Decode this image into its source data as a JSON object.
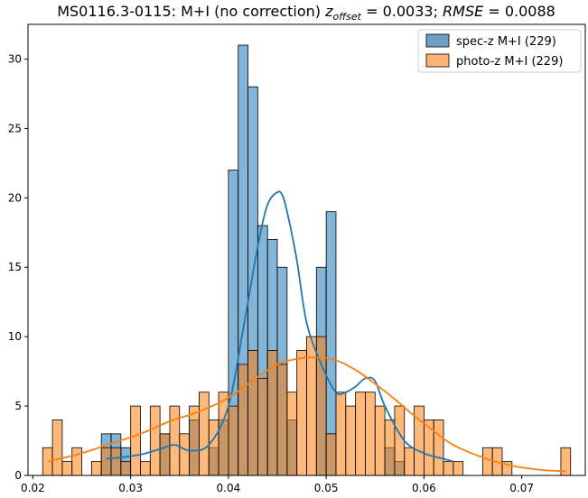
{
  "chart_data": {
    "type": "histogram",
    "title": {
      "prefix": "MS0116.3-0115: M+I (no correction) ",
      "z_symbol": "z",
      "z_subscript": "offset",
      "z_eq": " = 0.0033; ",
      "rmse_symbol": "RMSE",
      "rmse_eq": " = 0.0088"
    },
    "xlabel": "",
    "ylabel": "",
    "xlim": [
      0.0195,
      0.0765
    ],
    "ylim": [
      0,
      32.5
    ],
    "xticks": [
      0.02,
      0.03,
      0.04,
      0.05,
      0.06,
      0.07
    ],
    "xtick_labels": [
      "0.02",
      "0.03",
      "0.04",
      "0.05",
      "0.06",
      "0.07"
    ],
    "yticks": [
      0,
      5,
      10,
      15,
      20,
      25,
      30
    ],
    "ytick_labels": [
      "0",
      "5",
      "10",
      "15",
      "20",
      "25",
      "30"
    ],
    "bin_start": 0.021,
    "bin_width": 0.001,
    "legend_position": "upper-right",
    "series": [
      {
        "name": "spec-z M+I (229)",
        "color": "#1f77b4",
        "fill": "#6f9fc6",
        "counts": [
          0,
          0,
          0,
          0,
          0,
          0,
          3,
          3,
          2,
          0,
          0,
          0,
          3,
          0,
          0,
          4,
          0,
          2,
          4,
          22,
          31,
          28,
          18,
          17,
          15,
          4,
          0,
          0,
          15,
          19,
          0,
          0,
          0,
          0,
          0,
          2,
          1,
          0,
          0,
          0,
          0,
          0,
          0,
          0,
          0,
          0,
          0,
          0,
          0,
          0,
          0,
          0,
          0,
          0
        ],
        "kde_x": [
          0.0275,
          0.029,
          0.031,
          0.033,
          0.0345,
          0.036,
          0.038,
          0.04,
          0.0415,
          0.043,
          0.044,
          0.045,
          0.0455,
          0.046,
          0.047,
          0.048,
          0.0495,
          0.051,
          0.052,
          0.053,
          0.054,
          0.055,
          0.056,
          0.058,
          0.06,
          0.062,
          0.063
        ],
        "kde_y": [
          1.2,
          1.3,
          1.5,
          1.9,
          2.2,
          1.8,
          2.2,
          5,
          10.5,
          16.5,
          19.5,
          20.4,
          20.2,
          19,
          15.5,
          11,
          8,
          6,
          6,
          6.4,
          7,
          6.8,
          5,
          2.5,
          1.6,
          1.2,
          1.0
        ]
      },
      {
        "name": "photo-z M+I (229)",
        "color": "#ff7f0e",
        "fill": "#ffb176",
        "counts": [
          2,
          4,
          1,
          2,
          0,
          1,
          2,
          2,
          1,
          5,
          1,
          5,
          3,
          5,
          3,
          5,
          6,
          4,
          6,
          5,
          8,
          9,
          7,
          9,
          8,
          6,
          9,
          10,
          10,
          3,
          6,
          5,
          6,
          6,
          5,
          4,
          5,
          2,
          5,
          4,
          4,
          1,
          1,
          0,
          0,
          2,
          2,
          1,
          0,
          0,
          0,
          0,
          0,
          2
        ],
        "kde_x": [
          0.0215,
          0.025,
          0.028,
          0.031,
          0.034,
          0.037,
          0.04,
          0.043,
          0.045,
          0.047,
          0.049,
          0.051,
          0.053,
          0.055,
          0.057,
          0.059,
          0.061,
          0.063,
          0.066,
          0.069,
          0.072,
          0.0745
        ],
        "kde_y": [
          1.0,
          1.6,
          2.3,
          3.0,
          3.9,
          4.6,
          5.6,
          7.1,
          8.0,
          8.4,
          8.5,
          8.3,
          7.6,
          6.6,
          5.5,
          4.3,
          3.2,
          2.2,
          1.3,
          0.7,
          0.4,
          0.3
        ]
      }
    ]
  }
}
